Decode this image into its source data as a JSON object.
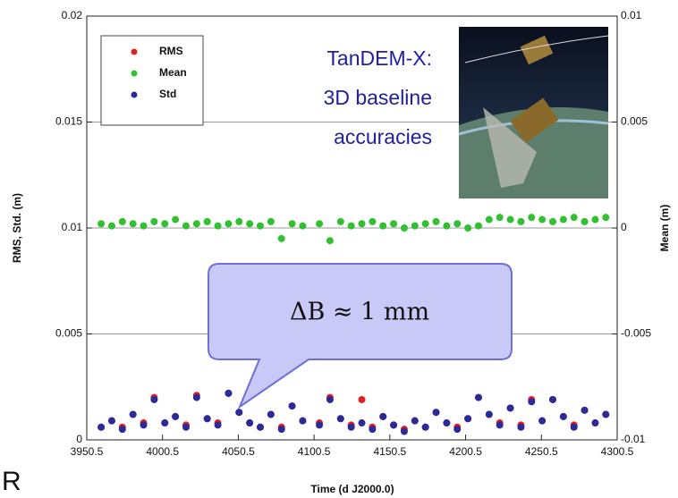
{
  "chart_data": {
    "type": "scatter",
    "x_label": "Time (d J2000.0)",
    "y_label": "RMS, Std. (m)",
    "y2_label": "Mean (m)",
    "annotations": [
      "TanDEM-X:",
      "3D baseline",
      "accuracies",
      "ΔB ≈ 1 mm",
      "R"
    ],
    "xlim": [
      3950.5,
      4300.5
    ],
    "xticks": [
      3950.5,
      4000.5,
      4050.5,
      4100.5,
      4150.5,
      4200.5,
      4250.5,
      4300.5
    ],
    "ylim": [
      0,
      0.02
    ],
    "yticks": [
      0,
      0.005,
      0.01,
      0.015,
      0.02
    ],
    "y2lim": [
      -0.01,
      0.01
    ],
    "y2ticks": [
      -0.01,
      -0.005,
      0,
      0.005,
      0.01
    ],
    "grid": true,
    "legend": "upper left",
    "x": [
      3960,
      3967,
      3974,
      3981,
      3988,
      3995,
      4002,
      4009,
      4016,
      4023,
      4030,
      4037,
      4044,
      4051,
      4058,
      4065,
      4072,
      4079,
      4086,
      4093,
      4104,
      4111,
      4118,
      4125,
      4132,
      4139,
      4146,
      4153,
      4160,
      4167,
      4174,
      4181,
      4188,
      4195,
      4202,
      4209,
      4216,
      4223,
      4230,
      4237,
      4244,
      4251,
      4258,
      4265,
      4272,
      4279,
      4286,
      4293
    ],
    "series": [
      {
        "name": "RMS",
        "color": "#e02020",
        "values": [
          0.0006,
          0.0009,
          0.0006,
          0.0012,
          0.0008,
          0.002,
          0.0008,
          0.0011,
          0.0007,
          0.0021,
          0.001,
          0.0008,
          0.0022,
          0.0013,
          0.0008,
          0.0006,
          0.0012,
          0.0006,
          0.0016,
          0.0009,
          0.0008,
          0.002,
          0.001,
          0.0007,
          0.0019,
          0.0006,
          0.0011,
          0.0007,
          0.0005,
          0.0009,
          0.0006,
          0.0013,
          0.0008,
          0.0006,
          0.001,
          0.002,
          0.0012,
          0.0008,
          0.0015,
          0.0007,
          0.0019,
          0.0009,
          0.0019,
          0.0011,
          0.0007,
          0.0014,
          0.0008,
          0.0012
        ]
      },
      {
        "name": "Mean",
        "color": "#30c030",
        "axis": "y2",
        "values": [
          0.0002,
          0.0001,
          0.0003,
          0.0002,
          0.0001,
          0.0003,
          0.0002,
          0.0004,
          0.0001,
          0.0002,
          0.0003,
          0.0001,
          0.0002,
          0.0003,
          0.0002,
          0.0001,
          0.0003,
          -0.0005,
          0.0002,
          0.0001,
          0.0002,
          -0.0006,
          0.0003,
          0.0001,
          0.0002,
          0.0003,
          0.0001,
          0.0002,
          0.0,
          0.0001,
          0.0002,
          0.0003,
          0.0001,
          0.0002,
          0.0,
          0.0001,
          0.0004,
          0.0005,
          0.0004,
          0.0003,
          0.0005,
          0.0004,
          0.0003,
          0.0004,
          0.0005,
          0.0003,
          0.0004,
          0.0005
        ]
      },
      {
        "name": "Std",
        "color": "#2a2a9a",
        "values": [
          0.0006,
          0.0009,
          0.0005,
          0.0012,
          0.0007,
          0.0019,
          0.0008,
          0.0011,
          0.0006,
          0.002,
          0.001,
          0.0007,
          0.0022,
          0.0013,
          0.0008,
          0.0006,
          0.0012,
          0.0005,
          0.0016,
          0.0009,
          0.0007,
          0.0019,
          0.001,
          0.0006,
          0.0008,
          0.0005,
          0.0011,
          0.0007,
          0.0004,
          0.0009,
          0.0006,
          0.0013,
          0.0008,
          0.0005,
          0.001,
          0.002,
          0.0012,
          0.0007,
          0.0015,
          0.0006,
          0.0018,
          0.0009,
          0.0019,
          0.0011,
          0.0006,
          0.0014,
          0.0008,
          0.0012
        ]
      }
    ]
  }
}
